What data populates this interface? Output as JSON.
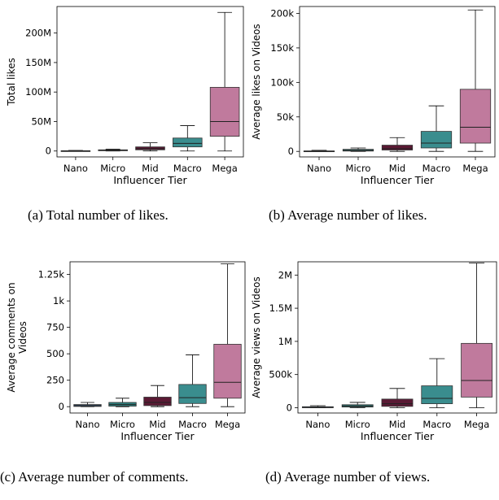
{
  "panels": [
    {
      "caption": "(a) Total number of likes.",
      "chart_data": {
        "type": "box",
        "categories": [
          "Nano",
          "Micro",
          "Mid",
          "Macro",
          "Mega"
        ],
        "xlabel": "Influencer Tier",
        "ylabel": "Total likes",
        "ylim": [
          -10000000,
          245000000
        ],
        "yticks": [
          0,
          50000000,
          100000000,
          150000000,
          200000000
        ],
        "yticklabels": [
          "0",
          "50M",
          "100M",
          "150M",
          "200M"
        ],
        "boxes": [
          {
            "whislo": 0,
            "q1": 0,
            "med": 200000,
            "q3": 500000,
            "whishi": 1000000
          },
          {
            "whislo": 0,
            "q1": 500000,
            "med": 1000000,
            "q3": 2000000,
            "whishi": 3000000
          },
          {
            "whislo": 0,
            "q1": 2000000,
            "med": 4000000,
            "q3": 7000000,
            "whishi": 14000000
          },
          {
            "whislo": 0,
            "q1": 7000000,
            "med": 13000000,
            "q3": 22000000,
            "whishi": 43000000
          },
          {
            "whislo": 0,
            "q1": 25000000,
            "med": 50000000,
            "q3": 108000000,
            "whishi": 235000000
          }
        ]
      }
    },
    {
      "caption": "(b) Average number of likes.",
      "chart_data": {
        "type": "box",
        "categories": [
          "Nano",
          "Micro",
          "Mid",
          "Macro",
          "Mega"
        ],
        "xlabel": "Influencer Tier",
        "ylabel": "Average likes on Videos",
        "ylim": [
          -8000,
          210000
        ],
        "yticks": [
          0,
          50000,
          100000,
          150000,
          200000
        ],
        "yticklabels": [
          "0",
          "50k",
          "100k",
          "150k",
          "200k"
        ],
        "boxes": [
          {
            "whislo": 0,
            "q1": 0,
            "med": 300,
            "q3": 700,
            "whishi": 1500
          },
          {
            "whislo": 0,
            "q1": 500,
            "med": 1500,
            "q3": 3000,
            "whishi": 5000
          },
          {
            "whislo": 0,
            "q1": 2000,
            "med": 4000,
            "q3": 9000,
            "whishi": 20000
          },
          {
            "whislo": 0,
            "q1": 5000,
            "med": 12000,
            "q3": 29000,
            "whishi": 66000
          },
          {
            "whislo": 0,
            "q1": 12000,
            "med": 35000,
            "q3": 90000,
            "whishi": 205000
          }
        ]
      }
    },
    {
      "caption": "(c) Average number of comments.",
      "chart_data": {
        "type": "box",
        "categories": [
          "Nano",
          "Micro",
          "Mid",
          "Macro",
          "Mega"
        ],
        "xlabel": "Influencer Tier",
        "ylabel": "Average comments on Videos",
        "ylim": [
          -60,
          1370
        ],
        "yticks": [
          0,
          250,
          500,
          750,
          1000,
          1250
        ],
        "yticklabels": [
          "0",
          "250",
          "500",
          "750",
          "1k",
          "1.25k"
        ],
        "boxes": [
          {
            "whislo": 0,
            "q1": 2,
            "med": 10,
            "q3": 20,
            "whishi": 40
          },
          {
            "whislo": 0,
            "q1": 5,
            "med": 20,
            "q3": 40,
            "whishi": 80
          },
          {
            "whislo": 0,
            "q1": 10,
            "med": 40,
            "q3": 90,
            "whishi": 200
          },
          {
            "whislo": 0,
            "q1": 30,
            "med": 85,
            "q3": 210,
            "whishi": 490
          },
          {
            "whislo": 0,
            "q1": 80,
            "med": 230,
            "q3": 590,
            "whishi": 1350
          }
        ]
      }
    },
    {
      "caption": "(d) Average number of views.",
      "chart_data": {
        "type": "box",
        "categories": [
          "Nano",
          "Micro",
          "Mid",
          "Macro",
          "Mega"
        ],
        "xlabel": "Influencer Tier",
        "ylabel": "Average views on Videos",
        "ylim": [
          -80000,
          2200000
        ],
        "yticks": [
          0,
          500000,
          1000000,
          1500000,
          2000000
        ],
        "yticklabels": [
          "0",
          "500k",
          "1M",
          "1.5M",
          "2M"
        ],
        "boxes": [
          {
            "whislo": 0,
            "q1": 0,
            "med": 5000,
            "q3": 15000,
            "whishi": 30000
          },
          {
            "whislo": 0,
            "q1": 10000,
            "med": 25000,
            "q3": 45000,
            "whishi": 80000
          },
          {
            "whislo": 0,
            "q1": 20000,
            "med": 60000,
            "q3": 130000,
            "whishi": 290000
          },
          {
            "whislo": 0,
            "q1": 60000,
            "med": 140000,
            "q3": 330000,
            "whishi": 740000
          },
          {
            "whislo": 0,
            "q1": 160000,
            "med": 410000,
            "q3": 970000,
            "whishi": 2180000
          }
        ]
      }
    }
  ],
  "colors": [
    "#3a5f88",
    "#2f7f7d",
    "#5a1a34",
    "#3a8d8e",
    "#c07a9d"
  ]
}
